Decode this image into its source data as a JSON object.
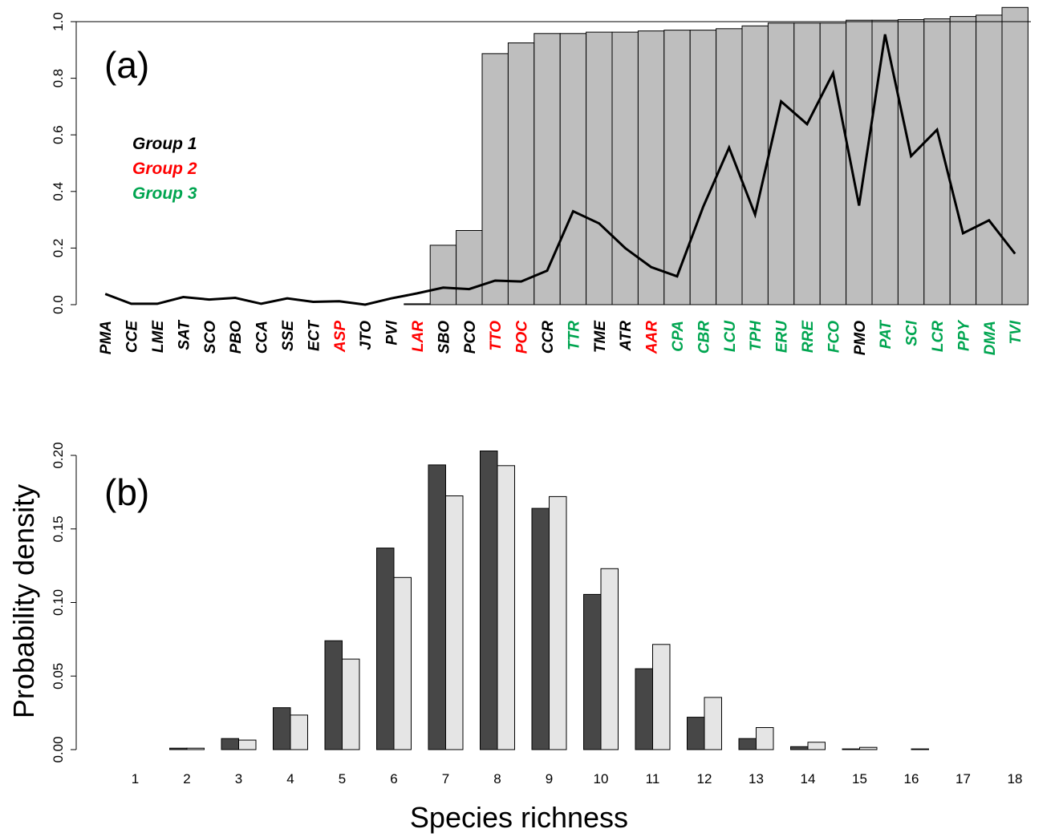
{
  "chart_data": [
    {
      "type": "bar",
      "panel_label": "(a)",
      "ylim": [
        0,
        1.0
      ],
      "yticks": [
        "0.0",
        "0.2",
        "0.4",
        "0.6",
        "0.8",
        "1.0"
      ],
      "reference_line": 1.0,
      "colors": {
        "bar_fill": "#bebebe",
        "bar_stroke": "#000000",
        "line": "#000000"
      },
      "legend": [
        {
          "label": "Group 1",
          "color": "#000000"
        },
        {
          "label": "Group 2",
          "color": "#ff0000"
        },
        {
          "label": "Group 3",
          "color": "#00a550"
        }
      ],
      "categories": [
        {
          "code": "PMA",
          "group": 1,
          "bar": 0.0,
          "line": 0.038
        },
        {
          "code": "CCE",
          "group": 1,
          "bar": 0.0,
          "line": 0.003
        },
        {
          "code": "LME",
          "group": 1,
          "bar": 0.0,
          "line": 0.003
        },
        {
          "code": "SAT",
          "group": 1,
          "bar": 0.0,
          "line": 0.027
        },
        {
          "code": "SCO",
          "group": 1,
          "bar": 0.0,
          "line": 0.018
        },
        {
          "code": "PBO",
          "group": 1,
          "bar": 0.0,
          "line": 0.024
        },
        {
          "code": "CCA",
          "group": 1,
          "bar": 0.0,
          "line": 0.003
        },
        {
          "code": "SSE",
          "group": 1,
          "bar": 0.0,
          "line": 0.022
        },
        {
          "code": "ECT",
          "group": 1,
          "bar": 0.0,
          "line": 0.01
        },
        {
          "code": "ASP",
          "group": 2,
          "bar": 0.0,
          "line": 0.012
        },
        {
          "code": "JTO",
          "group": 1,
          "bar": 0.0,
          "line": 0.0
        },
        {
          "code": "PVI",
          "group": 1,
          "bar": 0.0,
          "line": 0.022
        },
        {
          "code": "LAR",
          "group": 2,
          "bar": 0.003,
          "line": 0.04
        },
        {
          "code": "SBO",
          "group": 1,
          "bar": 0.21,
          "line": 0.06
        },
        {
          "code": "PCO",
          "group": 1,
          "bar": 0.262,
          "line": 0.055
        },
        {
          "code": "TTO",
          "group": 2,
          "bar": 0.887,
          "line": 0.085
        },
        {
          "code": "POC",
          "group": 2,
          "bar": 0.925,
          "line": 0.082
        },
        {
          "code": "CCR",
          "group": 1,
          "bar": 0.958,
          "line": 0.12
        },
        {
          "code": "TTR",
          "group": 3,
          "bar": 0.958,
          "line": 0.33
        },
        {
          "code": "TME",
          "group": 1,
          "bar": 0.963,
          "line": 0.287
        },
        {
          "code": "ATR",
          "group": 1,
          "bar": 0.963,
          "line": 0.2
        },
        {
          "code": "AAR",
          "group": 2,
          "bar": 0.967,
          "line": 0.133
        },
        {
          "code": "CPA",
          "group": 3,
          "bar": 0.97,
          "line": 0.1
        },
        {
          "code": "CBR",
          "group": 3,
          "bar": 0.97,
          "line": 0.345
        },
        {
          "code": "LCU",
          "group": 3,
          "bar": 0.975,
          "line": 0.555
        },
        {
          "code": "TPH",
          "group": 3,
          "bar": 0.985,
          "line": 0.318
        },
        {
          "code": "ERU",
          "group": 3,
          "bar": 0.995,
          "line": 0.718
        },
        {
          "code": "RRE",
          "group": 3,
          "bar": 0.995,
          "line": 0.638
        },
        {
          "code": "FCO",
          "group": 3,
          "bar": 0.995,
          "line": 0.818
        },
        {
          "code": "PMO",
          "group": 1,
          "bar": 1.005,
          "line": 0.35
        },
        {
          "code": "PAT",
          "group": 3,
          "bar": 1.005,
          "line": 0.955
        },
        {
          "code": "SCI",
          "group": 3,
          "bar": 1.007,
          "line": 0.525
        },
        {
          "code": "LCR",
          "group": 3,
          "bar": 1.01,
          "line": 0.618
        },
        {
          "code": "PPY",
          "group": 3,
          "bar": 1.018,
          "line": 0.252
        },
        {
          "code": "DMA",
          "group": 3,
          "bar": 1.023,
          "line": 0.298
        },
        {
          "code": "TVI",
          "group": 3,
          "bar": 1.05,
          "line": 0.18
        }
      ]
    },
    {
      "type": "bar",
      "panel_label": "(b)",
      "xlabel": "Species richness",
      "ylabel": "Probability density",
      "ylim": [
        0,
        0.2
      ],
      "yticks": [
        "0.00",
        "0.05",
        "0.10",
        "0.15",
        "0.20"
      ],
      "categories": [
        "1",
        "2",
        "3",
        "4",
        "5",
        "6",
        "7",
        "8",
        "9",
        "10",
        "11",
        "12",
        "13",
        "14",
        "15",
        "16",
        "17",
        "18"
      ],
      "colors": {
        "series1": "#474747",
        "series2": "#e5e5e5"
      },
      "series": [
        {
          "values": [
            0.0,
            0.001,
            0.0075,
            0.0285,
            0.074,
            0.137,
            0.1935,
            0.203,
            0.164,
            0.1055,
            0.055,
            0.022,
            0.0075,
            0.002,
            0.0005,
            0.0,
            0.0,
            0.0
          ]
        },
        {
          "values": [
            0.0,
            0.001,
            0.0065,
            0.0235,
            0.0615,
            0.117,
            0.1725,
            0.193,
            0.172,
            0.123,
            0.0715,
            0.0355,
            0.015,
            0.005,
            0.0015,
            0.0005,
            0.0,
            0.0
          ]
        }
      ]
    }
  ]
}
